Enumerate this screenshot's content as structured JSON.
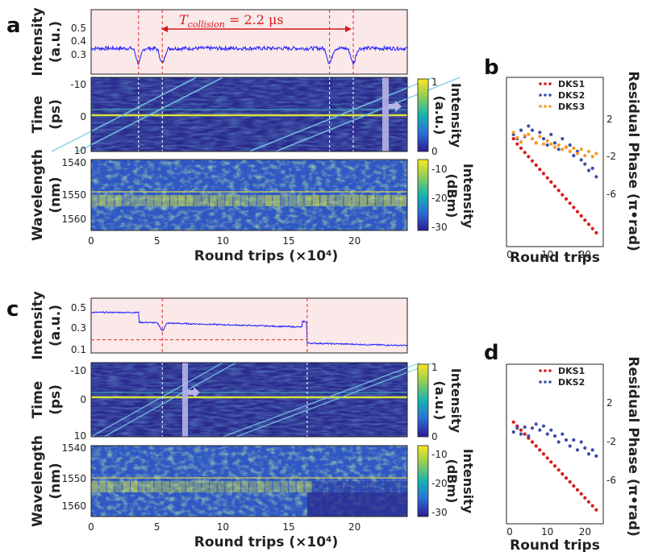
{
  "panels": {
    "a": "a",
    "b": "b",
    "c": "c",
    "d": "d"
  },
  "labels": {
    "intensity_au_line1": "Intensity",
    "intensity_au_line2": "(a.u.)",
    "time_line1": "Time",
    "time_line2": "(ps)",
    "wavelength_line1": "Wavelength",
    "wavelength_line2": "(nm)",
    "cbar_intensity": "Intensity",
    "cbar_au": "(a.u.)",
    "cbar_dbm": "(dBm)",
    "round_trips": "Round trips (×10⁴)",
    "round_trips_short": "Round trips",
    "residual_phase": "Residual Phase (π•rad)",
    "t_collision": "T",
    "t_collision_sub": "collision",
    "t_collision_value": " = 2.2 μs"
  },
  "colors": {
    "trace": "#1a1aff",
    "shade": "#fbe9ea",
    "red_line": "#e8262a",
    "map_bg": "#2a2a8c",
    "dks1": "#d7191c",
    "dks2": "#3b4fa8",
    "dks3": "#f59a23",
    "arrow": "#b7b3e6"
  },
  "chart_data": [
    {
      "id": "a-intensity",
      "type": "line",
      "ylabel": "Intensity (a.u.)",
      "xlim": [
        0,
        24
      ],
      "ylim": [
        0.25,
        0.55
      ],
      "yticks": [
        "0.5",
        "0.4",
        "0.3"
      ],
      "dips": [
        3.6,
        5.4,
        18.1,
        19.9
      ],
      "baseline": 0.37,
      "annotation": "T_collision = 2.2 μs"
    },
    {
      "id": "a-time",
      "type": "heatmap",
      "ylabel": "Time (ps)",
      "yticks": [
        "-10",
        "0",
        "10"
      ],
      "colorbar": {
        "label": "Intensity (a.u.)",
        "ticks": [
          "1",
          "0"
        ]
      },
      "marker_lines": [
        3.6,
        5.4,
        18.1,
        19.9
      ]
    },
    {
      "id": "a-wavelength",
      "type": "heatmap",
      "ylabel": "Wavelength (nm)",
      "yticks": [
        "1540",
        "1550",
        "1560"
      ],
      "colorbar": {
        "label": "Intensity (dBm)",
        "ticks": [
          "-10",
          "-20",
          "-30"
        ]
      },
      "xlabel": "Round trips (×10⁴)",
      "xticks": [
        "0",
        "5",
        "10",
        "15",
        "20"
      ]
    },
    {
      "id": "b",
      "type": "scatter",
      "xlabel": "Round trips",
      "ylabel": "Residual Phase (π•rad)",
      "xticks": [
        "0",
        "10",
        "20"
      ],
      "yticks": [
        "2",
        "-2",
        "-6"
      ],
      "xlim": [
        0,
        24
      ],
      "ylim": [
        -10,
        6
      ],
      "series": [
        {
          "name": "DKS1",
          "x": [
            1,
            2,
            3,
            4,
            5,
            6,
            7,
            8,
            9,
            10,
            11,
            12,
            13,
            14,
            15,
            16,
            17,
            18,
            19,
            20,
            21,
            22,
            23
          ],
          "y": [
            0.2,
            -0.3,
            -0.7,
            -1.1,
            -1.5,
            -1.9,
            -2.3,
            -2.7,
            -3.1,
            -3.5,
            -3.9,
            -4.3,
            -4.7,
            -5.1,
            -5.5,
            -5.9,
            -6.3,
            -6.7,
            -7.1,
            -7.5,
            -7.9,
            -8.3,
            -8.7
          ]
        },
        {
          "name": "DKS2",
          "x": [
            1,
            2,
            3,
            4,
            5,
            6,
            7,
            8,
            9,
            10,
            11,
            12,
            13,
            14,
            15,
            16,
            17,
            18,
            19,
            20,
            21,
            22,
            23
          ],
          "y": [
            0.6,
            0.2,
            1.0,
            0.4,
            1.4,
            1.0,
            -0.2,
            0.8,
            0.2,
            -0.4,
            0.6,
            -0.2,
            -0.8,
            0.2,
            -0.6,
            -0.4,
            -1.4,
            -1.0,
            -1.8,
            -2.2,
            -2.8,
            -2.6,
            -3.4
          ]
        },
        {
          "name": "DKS3",
          "x": [
            1,
            2,
            3,
            4,
            5,
            6,
            7,
            8,
            9,
            10,
            11,
            12,
            13,
            14,
            15,
            16,
            17,
            18,
            19,
            20,
            21,
            22,
            23
          ],
          "y": [
            0.8,
            0.3,
            -0.1,
            0.5,
            0.6,
            0.2,
            -0.2,
            0.4,
            -0.3,
            0.0,
            -0.3,
            -0.6,
            -0.4,
            -0.8,
            -0.6,
            -1.0,
            -0.7,
            -1.2,
            -0.8,
            -1.4,
            -1.0,
            -1.5,
            -1.2
          ]
        }
      ]
    },
    {
      "id": "c-intensity",
      "type": "line",
      "ylabel": "Intensity (a.u.)",
      "xlim": [
        0,
        24
      ],
      "ylim": [
        0.05,
        0.55
      ],
      "yticks": [
        "0.5",
        "0.3",
        "0.1"
      ],
      "marker_lines": [
        5.4,
        16.4
      ],
      "threshold": 0.17
    },
    {
      "id": "c-time",
      "type": "heatmap",
      "ylabel": "Time (ps)",
      "yticks": [
        "-10",
        "0",
        "10"
      ],
      "colorbar": {
        "label": "Intensity (a.u.)",
        "ticks": [
          "1",
          "0"
        ]
      },
      "marker_lines": [
        5.4,
        16.4
      ]
    },
    {
      "id": "c-wavelength",
      "type": "heatmap",
      "ylabel": "Wavelength (nm)",
      "yticks": [
        "1540",
        "1550",
        "1560"
      ],
      "colorbar": {
        "label": "Intensity (dBm)",
        "ticks": [
          "-10",
          "-20",
          "-30"
        ]
      },
      "xlabel": "Round trips (×10⁴)",
      "xticks": [
        "0",
        "5",
        "10",
        "15",
        "20"
      ]
    },
    {
      "id": "d",
      "type": "scatter",
      "xlabel": "Round trips",
      "ylabel": "Residual Phase (π•rad)",
      "xticks": [
        "0",
        "10",
        "20"
      ],
      "yticks": [
        "2",
        "-2",
        "-6"
      ],
      "xlim": [
        0,
        24
      ],
      "ylim": [
        -10,
        6
      ],
      "series": [
        {
          "name": "DKS1",
          "x": [
            1,
            2,
            3,
            4,
            5,
            6,
            7,
            8,
            9,
            10,
            11,
            12,
            13,
            14,
            15,
            16,
            17,
            18,
            19,
            20,
            21,
            22,
            23
          ],
          "y": [
            0.2,
            -0.2,
            -0.6,
            -1.0,
            -1.4,
            -1.8,
            -2.2,
            -2.6,
            -3.0,
            -3.4,
            -3.8,
            -4.2,
            -4.6,
            -5.0,
            -5.4,
            -5.8,
            -6.2,
            -6.6,
            -7.0,
            -7.4,
            -7.8,
            -8.2,
            -8.6
          ]
        },
        {
          "name": "DKS2",
          "x": [
            1,
            2,
            3,
            4,
            5,
            6,
            7,
            8,
            9,
            10,
            11,
            12,
            13,
            14,
            15,
            16,
            17,
            18,
            19,
            20,
            21,
            22,
            23
          ],
          "y": [
            -0.8,
            -0.4,
            -1.0,
            -0.3,
            -1.2,
            -0.4,
            0.0,
            -0.6,
            -0.2,
            -1.0,
            -0.6,
            -1.2,
            -1.8,
            -1.0,
            -1.6,
            -2.2,
            -1.6,
            -2.6,
            -1.8,
            -2.4,
            -3.0,
            -2.6,
            -3.2
          ]
        }
      ]
    }
  ]
}
